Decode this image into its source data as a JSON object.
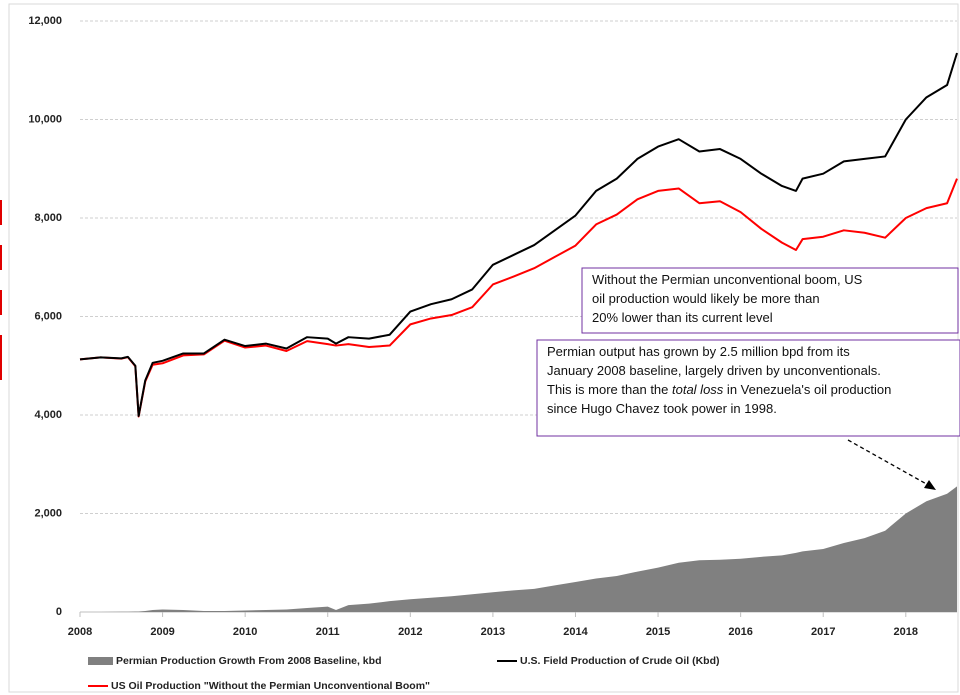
{
  "chart_data": {
    "type": "line",
    "x": [
      2008,
      2008.25,
      2008.5,
      2008.58,
      2008.67,
      2008.71,
      2008.79,
      2008.88,
      2009,
      2009.25,
      2009.5,
      2009.75,
      2010,
      2010.25,
      2010.5,
      2010.75,
      2011,
      2011.1,
      2011.25,
      2011.5,
      2011.75,
      2012,
      2012.25,
      2012.5,
      2012.75,
      2013,
      2013.25,
      2013.5,
      2013.75,
      2014,
      2014.25,
      2014.5,
      2014.75,
      2015,
      2015.25,
      2015.5,
      2015.75,
      2016,
      2016.25,
      2016.5,
      2016.67,
      2016.75,
      2017,
      2017.25,
      2017.5,
      2017.75,
      2018,
      2018.25,
      2018.5,
      2018.62
    ],
    "series": [
      {
        "name": "Permian Production Growth From 2008 Baseline, kbd",
        "kind": "area",
        "color": "#808080",
        "values": [
          0,
          0,
          5,
          5,
          10,
          10,
          20,
          40,
          50,
          40,
          20,
          20,
          30,
          40,
          50,
          80,
          110,
          40,
          140,
          170,
          220,
          260,
          290,
          320,
          360,
          400,
          440,
          470,
          540,
          610,
          680,
          730,
          820,
          900,
          1000,
          1050,
          1060,
          1080,
          1120,
          1150,
          1200,
          1230,
          1280,
          1400,
          1500,
          1650,
          2000,
          2250,
          2400,
          2550
        ]
      },
      {
        "name": "U.S. Field Production of Crude Oil (Kbd)",
        "kind": "line",
        "color": "#000000",
        "values": [
          5130,
          5170,
          5150,
          5180,
          5000,
          3980,
          4700,
          5060,
          5100,
          5250,
          5250,
          5530,
          5400,
          5450,
          5350,
          5580,
          5550,
          5450,
          5580,
          5550,
          5630,
          6100,
          6250,
          6350,
          6550,
          7050,
          7250,
          7450,
          7750,
          8050,
          8550,
          8800,
          9200,
          9450,
          9600,
          9350,
          9400,
          9200,
          8900,
          8650,
          8550,
          8800,
          8900,
          9150,
          9200,
          9250,
          10000,
          10450,
          10700,
          11350
        ]
      },
      {
        "name": "US Oil Production \"Without the Permian Unconventional Boom\"",
        "kind": "line",
        "color": "#ff0000",
        "values": [
          5130,
          5170,
          5145,
          5175,
          4990,
          3970,
          4680,
          5020,
          5050,
          5210,
          5230,
          5510,
          5370,
          5410,
          5300,
          5500,
          5440,
          5410,
          5440,
          5380,
          5410,
          5840,
          5960,
          6030,
          6190,
          6650,
          6810,
          6980,
          7210,
          7440,
          7870,
          8070,
          8380,
          8550,
          8600,
          8300,
          8340,
          8120,
          7780,
          7500,
          7350,
          7570,
          7620,
          7750,
          7700,
          7600,
          8000,
          8200,
          8300,
          8800
        ]
      }
    ],
    "xlim": [
      2008,
      2018.62
    ],
    "xticks": [
      2008,
      2009,
      2010,
      2011,
      2012,
      2013,
      2014,
      2015,
      2016,
      2017,
      2018
    ],
    "ylim": [
      0,
      12000
    ],
    "yticks": [
      0,
      {
        "value": 2000,
        "label": "2,000"
      },
      {
        "value": 4000,
        "label": "4,000"
      },
      {
        "value": 6000,
        "label": "6,000"
      },
      {
        "value": 8000,
        "label": "8,000"
      },
      {
        "value": 10000,
        "label": "10,000"
      },
      {
        "value": 12000,
        "label": "12,000"
      }
    ],
    "grid": true,
    "annotations": [
      {
        "lines": [
          [
            "Without the Permian unconventional boom, US"
          ],
          [
            "oil production would likely be more than"
          ],
          [
            "20% lower than its current level"
          ]
        ]
      },
      {
        "lines": [
          [
            "Permian output has grown by 2.5 million bpd from its"
          ],
          [
            "January 2008 baseline, largely driven by unconventionals."
          ],
          [
            "This is more than the ",
            {
              "text": "total loss",
              "italic": true
            },
            " in Venezuela's oil production"
          ],
          [
            "since Hugo Chavez took power in 1998."
          ]
        ]
      }
    ]
  }
}
